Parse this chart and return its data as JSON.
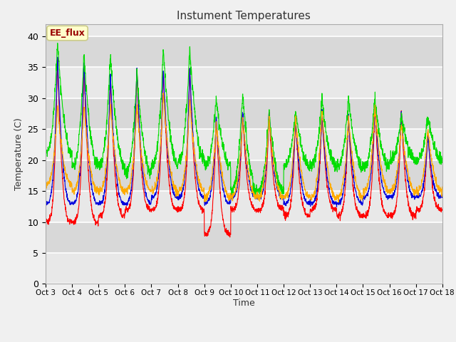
{
  "title": "Instument Temperatures",
  "xlabel": "Time",
  "ylabel": "Temperature (C)",
  "ylim": [
    0,
    42
  ],
  "yticks": [
    0,
    5,
    10,
    15,
    20,
    25,
    30,
    35,
    40
  ],
  "x_labels": [
    "Oct 3",
    "Oct 4",
    "Oct 5",
    "Oct 6",
    "Oct 7",
    "Oct 8",
    "Oct 9",
    "Oct 10",
    "Oct 11",
    "Oct 12",
    "Oct 13",
    "Oct 14",
    "Oct 15",
    "Oct 16",
    "Oct 17",
    "Oct 18"
  ],
  "colors": {
    "li75_t": "#ff0000",
    "li77_temp": "#0000dd",
    "SonicT": "#00dd00",
    "AirT": "#ffaa00"
  },
  "bg_light": "#e8e8e8",
  "bg_dark": "#d0d0d0",
  "annotation_text": "EE_flux",
  "annotation_color": "#990000",
  "annotation_bg": "#ffffcc",
  "annotation_border": "#cccc88",
  "n_days": 15,
  "pts_per_day": 144,
  "fig_width": 6.4,
  "fig_height": 4.8,
  "dpi": 100
}
